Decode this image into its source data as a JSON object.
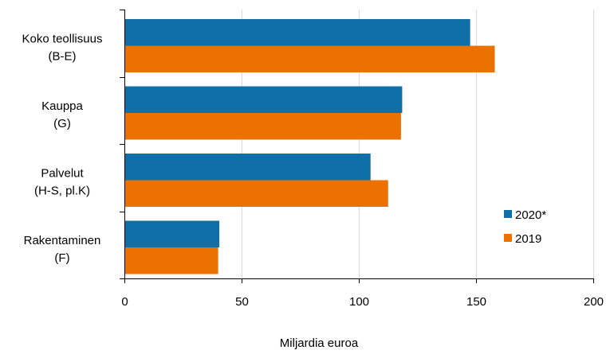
{
  "chart_data": {
    "type": "bar",
    "orientation": "horizontal",
    "categories": [
      [
        "Koko teollisuus",
        "(B-E)"
      ],
      [
        "Kauppa",
        "(G)"
      ],
      [
        "Palvelut",
        "(H-S, pl.K)"
      ],
      [
        "Rakentaminen",
        "(F)"
      ]
    ],
    "series": [
      {
        "name": "2020*",
        "color": "#0f6fa8",
        "values": [
          147.5,
          118.5,
          105,
          40.5
        ]
      },
      {
        "name": "2019",
        "color": "#eb7100",
        "values": [
          158,
          118,
          112.5,
          40
        ]
      }
    ],
    "xlim": [
      0,
      200
    ],
    "xticks": [
      "0",
      "50",
      "100",
      "150",
      "200"
    ],
    "xlabel": "Miljardia euroa",
    "grid": true,
    "legend_position": "right"
  }
}
